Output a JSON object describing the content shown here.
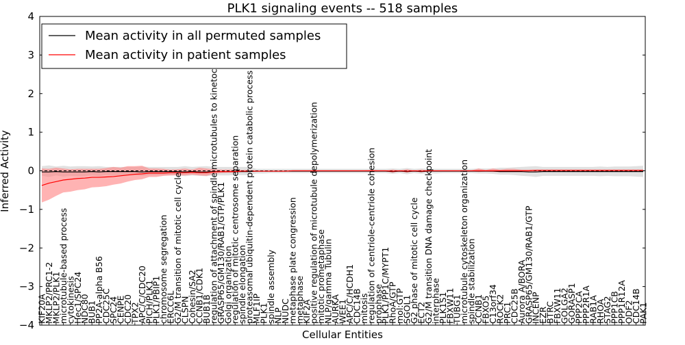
{
  "chart_data": {
    "type": "line",
    "title": "PLK1 signaling events -- 518 samples",
    "xlabel": "Cellular Entities",
    "ylabel": "Inferred Activity",
    "ylim": [
      -4,
      4
    ],
    "yticks": [
      -4,
      -3,
      -2,
      -1,
      0,
      1,
      2,
      3,
      4
    ],
    "ytick_labels": [
      "−4",
      "−3",
      "−2",
      "−1",
      "0",
      "1",
      "2",
      "3",
      "4"
    ],
    "legend_location": "top-left",
    "zero_line": true,
    "categories": [
      "KIF20A",
      "MKLP2/PRC1-2",
      "MKLP2/PLK1",
      "microtubule-based process",
      "cytokinesis",
      "Hec1/SPC24",
      "NDC80",
      "BUB1",
      "PP2A-alpha B56",
      "CDC25C",
      "SPC24",
      "CENPE",
      "CDC20",
      "TPX2",
      "APC/C/CDC20",
      "PICH/PLK1",
      "PLK1/PBIP1",
      "chromosome segregation",
      "ERCC6L",
      "G2/M transition of mitotic cell cycle",
      "CLSPN",
      "Cohesin/SA2",
      "CCNB1/CDK1",
      "BUB1B",
      "regulation of attachment of spindle microtubules to kinetochore",
      "GRASP65/GM130/RAB1/GTP/PLK1",
      "Golgi organization",
      "regulation of mitotic centrosome separation",
      "spindle elongation",
      "proteasomal ubiquitin-dependent protein catabolic process",
      "MLF1IP",
      "PLK1",
      "spindle assembly",
      "NLP",
      "NUDC",
      "metaphase plate congression",
      "metaphase",
      "KIF2A",
      "positive regulation of microtubule depolymerization",
      "mitotic prometaphase",
      "NLP/gamma Tubulin",
      "AURKA",
      "WEE1",
      "APC/C/HCDH1",
      "CDC14B",
      "mitosis",
      "regulation of centriole-centriole cohesion",
      "prophase",
      "PLK1/PP1C/MYPT1",
      "RhoA/GTP",
      "mol:GTP",
      "SGOL1",
      "G2 phase of mitotic cell cycle",
      "ECT2",
      "G2/M transition DNA damage checkpoint",
      "interphase",
      "PLK1S1",
      "FBXW11",
      "TUBG1",
      "microtubule cytoskeleton organization",
      "spindle stabilization",
      "CCNB1",
      "FBXO5",
      "C13orf34",
      "ROCK2",
      "PRC1",
      "CDC25B",
      "Aurora A/BORA",
      "GRASP65/GM130/RAB1/GTP",
      "INCENP",
      "EZR",
      "BTRC",
      "FBXW11",
      "GOLGA2",
      "GORASP1",
      "PPP2CA",
      "PPP2R1A",
      "RAB1A",
      "RHOA",
      "STAG2",
      "PPP1CB",
      "PPP1R12A",
      "ODF2",
      "CDC14B",
      "PAK1"
    ],
    "series": [
      {
        "name": "Mean activity in all permuted samples",
        "color": "#000000",
        "values": [
          -0.03,
          -0.03,
          -0.02,
          -0.03,
          -0.03,
          -0.03,
          -0.03,
          -0.02,
          -0.03,
          -0.02,
          -0.02,
          -0.02,
          -0.02,
          -0.02,
          -0.03,
          -0.02,
          -0.02,
          -0.02,
          -0.02,
          -0.02,
          -0.03,
          -0.02,
          -0.03,
          -0.03,
          -0.02,
          -0.02,
          -0.02,
          -0.02,
          -0.02,
          -0.02,
          -0.01,
          -0.01,
          -0.01,
          -0.01,
          -0.01,
          -0.01,
          -0.01,
          -0.01,
          -0.01,
          -0.01,
          -0.01,
          -0.01,
          -0.01,
          -0.01,
          -0.01,
          -0.01,
          -0.01,
          -0.01,
          -0.01,
          -0.02,
          -0.01,
          -0.02,
          -0.01,
          -0.02,
          -0.01,
          -0.01,
          -0.01,
          -0.01,
          -0.01,
          -0.01,
          -0.01,
          -0.01,
          -0.01,
          -0.01,
          -0.02,
          -0.02,
          -0.02,
          -0.02,
          -0.03,
          -0.03,
          -0.02,
          -0.02,
          -0.02,
          -0.02,
          -0.02,
          -0.02,
          -0.02,
          -0.02,
          -0.02,
          -0.02,
          -0.02,
          -0.02,
          -0.02,
          -0.02,
          -0.02
        ],
        "lower": [
          -0.13,
          -0.16,
          -0.12,
          -0.15,
          -0.13,
          -0.14,
          -0.14,
          -0.12,
          -0.14,
          -0.11,
          -0.12,
          -0.12,
          -0.12,
          -0.12,
          -0.13,
          -0.11,
          -0.11,
          -0.11,
          -0.12,
          -0.11,
          -0.14,
          -0.12,
          -0.13,
          -0.14,
          -0.12,
          -0.12,
          -0.12,
          -0.11,
          -0.11,
          -0.11,
          -0.07,
          -0.07,
          -0.06,
          -0.06,
          -0.06,
          -0.06,
          -0.06,
          -0.06,
          -0.06,
          -0.06,
          -0.06,
          -0.06,
          -0.06,
          -0.06,
          -0.06,
          -0.06,
          -0.06,
          -0.06,
          -0.06,
          -0.08,
          -0.06,
          -0.09,
          -0.06,
          -0.08,
          -0.06,
          -0.07,
          -0.06,
          -0.06,
          -0.06,
          -0.06,
          -0.06,
          -0.07,
          -0.07,
          -0.08,
          -0.1,
          -0.1,
          -0.11,
          -0.13,
          -0.14,
          -0.16,
          -0.13,
          -0.13,
          -0.13,
          -0.13,
          -0.13,
          -0.13,
          -0.13,
          -0.13,
          -0.14,
          -0.13,
          -0.14,
          -0.14,
          -0.14,
          -0.15,
          -0.16
        ],
        "upper": [
          0.12,
          0.14,
          0.11,
          0.13,
          0.11,
          0.12,
          0.12,
          0.11,
          0.12,
          0.1,
          0.1,
          0.1,
          0.1,
          0.1,
          0.11,
          0.1,
          0.1,
          0.1,
          0.1,
          0.1,
          0.12,
          0.1,
          0.11,
          0.12,
          0.1,
          0.1,
          0.1,
          0.1,
          0.1,
          0.1,
          0.05,
          0.05,
          0.05,
          0.05,
          0.05,
          0.05,
          0.05,
          0.05,
          0.05,
          0.05,
          0.05,
          0.05,
          0.05,
          0.05,
          0.05,
          0.05,
          0.05,
          0.05,
          0.05,
          0.06,
          0.05,
          0.07,
          0.05,
          0.06,
          0.05,
          0.05,
          0.05,
          0.05,
          0.05,
          0.05,
          0.05,
          0.06,
          0.06,
          0.06,
          0.08,
          0.08,
          0.09,
          0.1,
          0.11,
          0.12,
          0.1,
          0.1,
          0.1,
          0.1,
          0.1,
          0.1,
          0.1,
          0.1,
          0.11,
          0.1,
          0.11,
          0.11,
          0.11,
          0.12,
          0.13
        ]
      },
      {
        "name": "Mean activity in patient samples",
        "color": "#ff0000",
        "fill": "#ff8080",
        "values": [
          -0.38,
          -0.32,
          -0.28,
          -0.24,
          -0.22,
          -0.2,
          -0.19,
          -0.17,
          -0.17,
          -0.16,
          -0.15,
          -0.13,
          -0.11,
          -0.09,
          -0.08,
          -0.06,
          -0.06,
          -0.06,
          -0.05,
          -0.05,
          -0.05,
          -0.04,
          -0.05,
          -0.05,
          -0.03,
          -0.02,
          -0.02,
          -0.02,
          -0.01,
          -0.01,
          -0.01,
          -0.01,
          -0.01,
          -0.01,
          -0.01,
          0.0,
          0.0,
          0.0,
          0.0,
          0.0,
          0.0,
          0.0,
          0.0,
          0.0,
          0.0,
          0.0,
          0.0,
          0.0,
          0.0,
          -0.01,
          0.0,
          -0.01,
          0.0,
          -0.01,
          0.0,
          0.0,
          0.0,
          0.0,
          0.0,
          0.0,
          0.0,
          0.0,
          0.0,
          0.0,
          0.0,
          0.0,
          0.0,
          0.0,
          0.0,
          0.01,
          0.01,
          0.01,
          0.01,
          0.01,
          0.01,
          0.01,
          0.01,
          0.01,
          0.01,
          0.01,
          0.01,
          0.01,
          0.01,
          0.01,
          0.01
        ],
        "lower": [
          -0.82,
          -0.75,
          -0.65,
          -0.56,
          -0.54,
          -0.5,
          -0.48,
          -0.43,
          -0.42,
          -0.4,
          -0.36,
          -0.33,
          -0.28,
          -0.24,
          -0.22,
          -0.16,
          -0.16,
          -0.13,
          -0.12,
          -0.12,
          -0.12,
          -0.1,
          -0.12,
          -0.13,
          -0.08,
          -0.06,
          -0.05,
          -0.05,
          -0.03,
          -0.03,
          -0.02,
          -0.02,
          -0.02,
          -0.02,
          -0.02,
          -0.01,
          -0.01,
          -0.01,
          -0.01,
          -0.01,
          -0.01,
          -0.01,
          -0.01,
          -0.01,
          -0.01,
          -0.01,
          -0.02,
          -0.01,
          -0.01,
          -0.05,
          -0.01,
          -0.05,
          -0.01,
          -0.04,
          -0.01,
          -0.01,
          -0.01,
          -0.01,
          -0.01,
          -0.02,
          -0.01,
          -0.03,
          -0.02,
          -0.03,
          -0.03,
          -0.03,
          -0.03,
          -0.03,
          -0.02,
          -0.02,
          -0.02,
          -0.02,
          -0.02,
          -0.02,
          -0.02,
          -0.02,
          -0.02,
          -0.02,
          -0.02,
          -0.02,
          -0.02,
          -0.02,
          -0.02,
          -0.02,
          -0.02
        ],
        "upper": [
          0.06,
          0.05,
          0.08,
          0.06,
          0.04,
          0.05,
          0.05,
          0.05,
          0.05,
          0.07,
          0.1,
          0.08,
          0.12,
          0.12,
          0.13,
          0.06,
          0.06,
          0.05,
          0.03,
          0.04,
          0.06,
          0.03,
          0.08,
          0.06,
          0.04,
          0.03,
          0.03,
          0.03,
          0.02,
          0.02,
          0.01,
          0.01,
          0.01,
          0.01,
          0.01,
          0.01,
          0.01,
          0.01,
          0.01,
          0.01,
          0.01,
          0.01,
          0.01,
          0.01,
          0.01,
          0.01,
          0.02,
          0.01,
          0.01,
          0.03,
          0.01,
          0.04,
          0.01,
          0.03,
          0.01,
          0.01,
          0.01,
          0.01,
          0.01,
          0.01,
          0.01,
          0.06,
          0.02,
          0.06,
          0.03,
          0.05,
          0.05,
          0.03,
          0.03,
          0.03,
          0.03,
          0.03,
          0.03,
          0.03,
          0.03,
          0.03,
          0.03,
          0.03,
          0.03,
          0.03,
          0.03,
          0.03,
          0.03,
          0.03,
          0.03
        ]
      }
    ]
  }
}
